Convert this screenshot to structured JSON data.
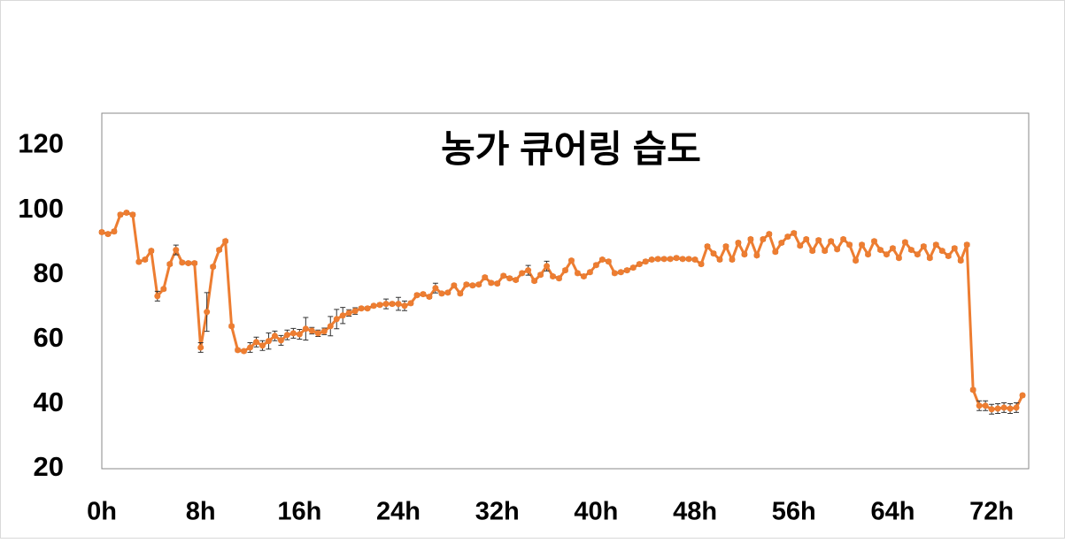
{
  "chart_data": {
    "type": "line",
    "title": "농가 큐어링 습도",
    "x": [
      0,
      0.5,
      1,
      1.5,
      2,
      2.5,
      3,
      3.5,
      4,
      4.5,
      5,
      5.5,
      6,
      6.5,
      7,
      7.5,
      8,
      8.5,
      9,
      9.5,
      10,
      10.5,
      11,
      11.5,
      12,
      12.5,
      13,
      13.5,
      14,
      14.5,
      15,
      15.5,
      16,
      16.5,
      17,
      17.5,
      18,
      18.5,
      19,
      19.5,
      20,
      20.5,
      21,
      21.5,
      22,
      22.5,
      23,
      23.5,
      24,
      24.5,
      25,
      25.5,
      26,
      26.5,
      27,
      27.5,
      28,
      28.5,
      29,
      29.5,
      30,
      30.5,
      31,
      31.5,
      32,
      32.5,
      33,
      33.5,
      34,
      34.5,
      35,
      35.5,
      36,
      36.5,
      37,
      37.5,
      38,
      38.5,
      39,
      39.5,
      40,
      40.5,
      41,
      41.5,
      42,
      42.5,
      43,
      43.5,
      44,
      44.5,
      45,
      45.5,
      46,
      46.5,
      47,
      47.5,
      48,
      48.5,
      49,
      49.5,
      50,
      50.5,
      51,
      51.5,
      52,
      52.5,
      53,
      53.5,
      54,
      54.5,
      55,
      55.5,
      56,
      56.5,
      57,
      57.5,
      58,
      58.5,
      59,
      59.5,
      60,
      60.5,
      61,
      61.5,
      62,
      62.5,
      63,
      63.5,
      64,
      64.5,
      65,
      65.5,
      66,
      66.5,
      67,
      67.5,
      68,
      68.5,
      69,
      69.5,
      70,
      70.5,
      71,
      71.5,
      72,
      72.5,
      73,
      73.5,
      74,
      74.5
    ],
    "values": [
      93.2,
      92.6,
      93.4,
      98.6,
      99.2,
      98.6,
      84,
      84.7,
      87.4,
      73.4,
      75.6,
      83.3,
      87.7,
      83.8,
      83.6,
      83.6,
      57.5,
      68.5,
      82.5,
      87.7,
      90.4,
      64.1,
      56.7,
      56.4,
      57.5,
      59.2,
      58.1,
      59.5,
      61.1,
      59.7,
      61.4,
      61.9,
      61.6,
      63.3,
      62.7,
      61.9,
      62.5,
      64.1,
      66.3,
      67.4,
      68.2,
      68.8,
      69.6,
      69.6,
      70.4,
      70.7,
      71,
      71,
      71,
      70.4,
      71.2,
      73.7,
      74,
      73.2,
      75.9,
      74.2,
      74.5,
      76.7,
      74.2,
      77,
      76.7,
      77,
      79.2,
      77.5,
      77.3,
      79.7,
      78.9,
      78.4,
      80.5,
      81.4,
      78.1,
      80,
      82.7,
      79.5,
      78.9,
      81.4,
      84.4,
      80.5,
      79.5,
      80.8,
      83,
      84.7,
      84.1,
      80.5,
      80.8,
      81.4,
      82.2,
      83.3,
      84.1,
      84.7,
      84.9,
      84.9,
      84.9,
      85.2,
      84.9,
      84.9,
      84.7,
      83.3,
      88.8,
      86.6,
      84.7,
      88.8,
      84.7,
      89.9,
      86.3,
      91,
      86,
      91,
      92.6,
      87.1,
      89.9,
      91.8,
      92.9,
      89,
      91,
      87.4,
      90.7,
      87.4,
      90.4,
      87.9,
      91,
      89.3,
      84.4,
      89.3,
      86.3,
      90.4,
      87.7,
      86.3,
      88.2,
      85.2,
      90.1,
      87.7,
      86.3,
      88.8,
      85.2,
      89.3,
      87.4,
      85.8,
      88.2,
      84.4,
      89.3,
      44.4,
      39.5,
      39.5,
      38.4,
      38.6,
      38.9,
      38.6,
      38.9,
      42.7
    ],
    "errors": [
      0.5,
      0.5,
      0.5,
      0.5,
      0.5,
      0.5,
      0.5,
      0.5,
      0.5,
      1.5,
      0.5,
      0.5,
      1.5,
      0.5,
      0.5,
      0.5,
      1.5,
      6,
      0.5,
      0.5,
      0.5,
      0.5,
      0.5,
      0.5,
      1.5,
      1.5,
      1.5,
      2.5,
      1.5,
      1.5,
      1.5,
      1.5,
      1.5,
      3.5,
      1,
      1,
      1,
      3,
      3,
      2.5,
      1,
      1,
      0.5,
      0.5,
      0.5,
      0.5,
      1.5,
      0.5,
      2,
      1.5,
      0.5,
      0.5,
      0.5,
      0.5,
      1.5,
      0.5,
      0.5,
      0.5,
      0.5,
      0.5,
      0.5,
      0.5,
      0.5,
      0.5,
      0.5,
      0.5,
      0.5,
      0.5,
      0.5,
      1.5,
      0.5,
      0.5,
      1.5,
      0.5,
      0.5,
      0.5,
      0.5,
      0.5,
      0.5,
      0.5,
      0.5,
      0.5,
      0.5,
      0.5,
      0.5,
      0.5,
      0.5,
      0.5,
      0.5,
      0.5,
      0.5,
      0.5,
      0.5,
      0.5,
      0.5,
      0.5,
      0.5,
      0.5,
      0.5,
      0.5,
      0.5,
      0.5,
      0.5,
      0.5,
      0.5,
      0.5,
      0.5,
      0.5,
      0.5,
      0.5,
      0.5,
      0.5,
      0.5,
      0.5,
      0.5,
      0.5,
      0.5,
      0.5,
      0.5,
      0.5,
      0.5,
      0.5,
      0.5,
      0.5,
      0.5,
      0.5,
      0.5,
      0.5,
      0.5,
      0.5,
      0.5,
      0.5,
      0.5,
      0.5,
      0.5,
      0.5,
      0.5,
      0.5,
      0.5,
      0.5,
      0.5,
      0.5,
      1.5,
      1.5,
      1.5,
      1.5,
      1.5,
      1.5,
      1.5,
      0.5
    ],
    "color": "#ed7d31",
    "xlim": [
      0,
      75
    ],
    "xticks": [
      {
        "value": 0,
        "label": "0h"
      },
      {
        "value": 8,
        "label": "8h"
      },
      {
        "value": 16,
        "label": "16h"
      },
      {
        "value": 24,
        "label": "24h"
      },
      {
        "value": 32,
        "label": "32h"
      },
      {
        "value": 40,
        "label": "40h"
      },
      {
        "value": 48,
        "label": "48h"
      },
      {
        "value": 56,
        "label": "56h"
      },
      {
        "value": 64,
        "label": "64h"
      },
      {
        "value": 72,
        "label": "72h"
      }
    ],
    "ylim": [
      20,
      130
    ],
    "yticks": [
      20,
      40,
      60,
      80,
      100,
      120
    ],
    "grid": false
  }
}
